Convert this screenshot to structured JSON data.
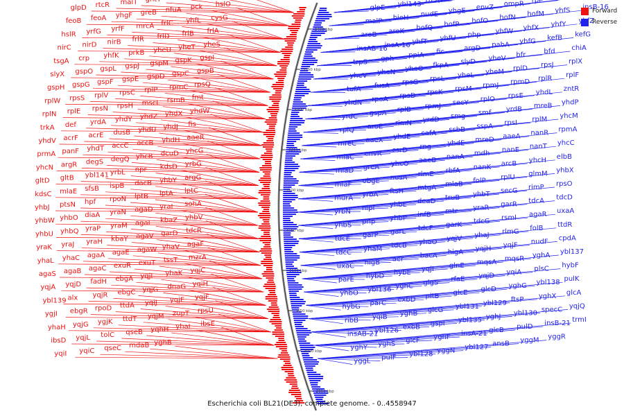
{
  "legend": {
    "forward_label": "Forward",
    "reverse_label": "Reverse",
    "forward_color": "#ee1111",
    "reverse_color": "#2222ee"
  },
  "caption": "Escherichia coli BL21(DE3), complete genome. - 0..4558947",
  "scale_ticks": [
    "3400 kbp",
    "3350 kbp",
    "3300 kbp",
    "3250 kbp",
    "3200 kbp",
    "3150 kbp",
    "3100 kbp",
    "3050 kbp",
    "3000 kbp",
    "2950 kbp"
  ],
  "forward_genes": [
    "glpD",
    "rtcR",
    "malT",
    "gntT",
    "gntX",
    "yhgA",
    "feoC",
    "feoB",
    "feoA",
    "yhgF",
    "greB",
    "nfuA",
    "pck",
    "hslO",
    "hslR",
    "yrfG",
    "yrfF",
    "mrcA",
    "frlC",
    "yhfL",
    "cysG",
    "nirC",
    "nirD",
    "nirB",
    "frlR",
    "frlD",
    "frlB",
    "frlA",
    "tsgA",
    "crp",
    "yhfK",
    "prkB",
    "yheU",
    "yheT",
    "yheS",
    "slyX",
    "gspO",
    "gspL",
    "gspJ",
    "gspM",
    "gspK",
    "gspI",
    "gspH",
    "gspG",
    "gspF",
    "gspE",
    "gspD",
    "gspC",
    "gspB",
    "rplW",
    "rpsS",
    "rplV",
    "rpsC",
    "rplP",
    "rpmC",
    "rpsQ",
    "rplN",
    "rplE",
    "rpsN",
    "rpsH",
    "mscL",
    "rsmB",
    "fmt",
    "trkA",
    "def",
    "yrdA",
    "yhdY",
    "yhdZ",
    "yhdX",
    "yhdW",
    "yhdV",
    "acrF",
    "acrE",
    "dusB",
    "yhdU",
    "yhdJ",
    "fis",
    "prmA",
    "panF",
    "yhdT",
    "accC",
    "accB",
    "yhdH",
    "aaeR",
    "yhcN",
    "argR",
    "degS",
    "degQ",
    "yhcB",
    "dcuD",
    "yhcG",
    "gltD",
    "gltB",
    "ybl141",
    "yrbL",
    "npr",
    "kdsD",
    "yrbG",
    "kdsC",
    "mlaE",
    "sfsB",
    "ispB",
    "dacB",
    "yhbY",
    "argG",
    "yhbJ",
    "ptsN",
    "hpf",
    "rpoN",
    "lptB",
    "lptA",
    "lptC",
    "yhbW",
    "yhbO",
    "diaA",
    "yraN",
    "agaD",
    "yraI",
    "sohA",
    "yhbU",
    "yhbQ",
    "yraP",
    "yraM",
    "agaI",
    "kbaZ",
    "yhbV",
    "yraK",
    "yraJ",
    "yraH",
    "kbaY",
    "agaV",
    "garD",
    "tdcR",
    "yhaL",
    "yhaC",
    "agaA",
    "agaE",
    "agaW",
    "yhaV",
    "agaF",
    "agaS",
    "agaB",
    "agaC",
    "exuR",
    "exuT",
    "tssT",
    "mzrA",
    "yqjA",
    "yqjD",
    "fadH",
    "ebgA",
    "yqjI",
    "yhaK",
    "yqjC",
    "ybl139",
    "alx",
    "yqjR",
    "ebgC",
    "yqjG",
    "dnaG",
    "yqiH",
    "ygjI",
    "ebgR",
    "rpoD",
    "ttdA",
    "yqiJ",
    "yqjE",
    "yqjF",
    "yhaH",
    "yqjG",
    "ygjK",
    "ttdT",
    "yqjM",
    "zupT",
    "rpsU",
    "ibsD",
    "yqjL",
    "tolC",
    "qseB",
    "yqhH",
    "yhaI",
    "ibsE",
    "yqiI",
    "yqiC",
    "qseC",
    "mdaB",
    "yghB"
  ],
  "reverse_genes": [
    "glpE",
    "ybl143",
    "rtcA",
    "rtcB",
    "glpR",
    "glpG",
    "ybl142",
    "ybl144",
    "malQ",
    "malP",
    "bioH",
    "nudE",
    "yhgE",
    "envZ",
    "ompR",
    "rpe",
    "dam",
    "damX",
    "aroB",
    "aroK",
    "hofQ",
    "hofP",
    "hofO",
    "hofN",
    "hofM",
    "yhfS",
    "insB-16",
    "insAB-16",
    "insA-16",
    "yhfT",
    "yhfU",
    "php",
    "yhfW",
    "yhfX",
    "yhfY",
    "yhfZ",
    "trpS",
    "gph",
    "ppiA",
    "fic",
    "argD",
    "pabA",
    "yhfG",
    "kefB",
    "kefG",
    "yheV",
    "yheN",
    "yheO",
    "fkpA",
    "slyD",
    "yheV",
    "bfr",
    "bfd",
    "chiA",
    "tufA",
    "fusA",
    "rpsG",
    "rpsL",
    "yheL",
    "yheM",
    "rplD",
    "rpsJ",
    "rplX",
    "yhdN",
    "rpoA",
    "rpsD",
    "rpsK",
    "rpsM",
    "rpmJ",
    "rpmD",
    "rplR",
    "rplF",
    "yrdC",
    "gspA",
    "rplB",
    "rpmJ",
    "secY",
    "rplO",
    "rpsE",
    "yhdL",
    "zntR",
    "rplQ",
    "aroE",
    "rimN",
    "yrdD",
    "smg",
    "smf",
    "yrdB",
    "mreB",
    "yhdP",
    "mreC",
    "aaeX",
    "yhdE",
    "cafA",
    "ssbB",
    "sspA",
    "rpsI",
    "rplM",
    "yhcM",
    "mlaC",
    "envR",
    "csrD",
    "rng",
    "yhdE",
    "mreD",
    "aaeA",
    "nanR",
    "rpmA",
    "mlaD",
    "greA",
    "yhcO",
    "aaeB",
    "nanA",
    "mdh",
    "nanE",
    "nanT",
    "yhcC",
    "mlaF",
    "obgE",
    "nusA",
    "rlmE",
    "rbfA",
    "nanK",
    "arcB",
    "yhcH",
    "elbB",
    "murA",
    "yrbA",
    "ftsH",
    "mtgA",
    "mlaB",
    "folP",
    "rplU",
    "glmM",
    "yhbX",
    "yrbN",
    "nlpI",
    "yhbE",
    "deaD",
    "truB",
    "yhbT",
    "secG",
    "rimP",
    "rpsO",
    "yhbS",
    "pnp",
    "yhbP",
    "infB",
    "mtr",
    "yraR",
    "garR",
    "tdcA",
    "tdcD",
    "tdcE",
    "garP",
    "garL",
    "tdcF",
    "garK",
    "tdcG",
    "rsml",
    "agaR",
    "uxaA",
    "tdcC",
    "yhaM",
    "tdcB",
    "yhaO",
    "yqjV",
    "yhaJ",
    "rlmG",
    "folB",
    "ttdR",
    "uxaC",
    "higB",
    "aer",
    "bacA",
    "higA",
    "yqjH",
    "yqjF",
    "nudF",
    "cpdA",
    "parE",
    "hybD",
    "hybE",
    "yqjI",
    "glnE",
    "mqsA",
    "mqsR",
    "yghA",
    "ybl137",
    "yhbO",
    "ybl136",
    "yghC",
    "glgS",
    "rfaE",
    "yqjD",
    "yqiA",
    "plsC",
    "hybF",
    "hybG",
    "parC",
    "exbD",
    "pitB",
    "glcE",
    "glcD",
    "yghG",
    "ybl138",
    "pulK",
    "ribB",
    "yqiB",
    "yghB",
    "glcG",
    "ybl131",
    "ybl129",
    "ftsP",
    "yghX",
    "glcA",
    "insAB-21",
    "ybl126",
    "exbB",
    "gspI",
    "ybl135",
    "yghJ",
    "ybl130",
    "specC",
    "yqjQ",
    "yghY",
    "yghS",
    "glcF",
    "yghF",
    "insA-21",
    "glcB",
    "pulD",
    "insB-21",
    "trmI",
    "yggL",
    "pulF",
    "ybl128",
    "yggN",
    "ybl127",
    "ansB",
    "yggM",
    "yggR"
  ],
  "inner_markers": [
    "frlA",
    "glpD",
    "rplP",
    "rpsS",
    "ompR"
  ]
}
